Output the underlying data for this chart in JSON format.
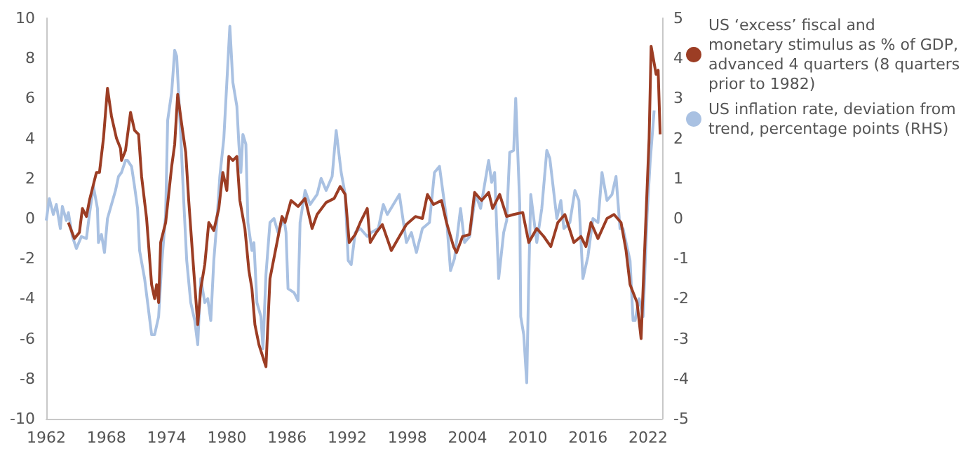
{
  "chart_data": {
    "type": "line",
    "legend": "top right",
    "marker": "none",
    "xlim": [
      1962,
      2023.4
    ],
    "xticks": [
      1962,
      1968,
      1974,
      1980,
      1986,
      1992,
      1998,
      2004,
      2010,
      2016,
      2022
    ],
    "ylim": [
      -10,
      10
    ],
    "yticks": [
      -10,
      -8,
      -6,
      -4,
      -2,
      0,
      2,
      4,
      6,
      8,
      10
    ],
    "y2lim": [
      -5,
      5
    ],
    "y2ticks": [
      -5,
      -4,
      -3,
      -2,
      -1,
      0,
      1,
      2,
      3,
      4,
      5
    ],
    "series": [
      {
        "name": "US ‘excess’ fiscal and monetary stimulus as % of GDP, advanced 4 quarters (8 quarters prior to 1982)",
        "color": "#9c3d24",
        "x": [
          1964.2,
          1964.8,
          1965.3,
          1965.6,
          1966,
          1966.3,
          1966.7,
          1967,
          1967.3,
          1967.7,
          1968.1,
          1968.5,
          1969,
          1969.4,
          1969.5,
          1969.9,
          1970.4,
          1970.8,
          1971.2,
          1971.5,
          1972,
          1972.5,
          1972.8,
          1973,
          1973.2,
          1973.4,
          1973.9,
          1974.5,
          1974.8,
          1975.1,
          1975.5,
          1975.9,
          1976.2,
          1976.7,
          1977.1,
          1977.4,
          1977.8,
          1978.2,
          1978.7,
          1979.2,
          1979.6,
          1980,
          1980.2,
          1980.6,
          1981,
          1981.3,
          1981.8,
          1982.2,
          1982.5,
          1982.8,
          1983.2,
          1983.9,
          1984.3,
          1985,
          1985.5,
          1985.8,
          1986.4,
          1987.1,
          1987.8,
          1988.5,
          1989,
          1989.9,
          1990.7,
          1991.3,
          1991.8,
          1992.2,
          1992.8,
          1993.3,
          1994,
          1994.3,
          1994.9,
          1995.5,
          1996.4,
          1997.2,
          1997.9,
          1998.8,
          1999.5,
          2000,
          2000.6,
          2001.4,
          2001.9,
          2002.6,
          2002.9,
          2003.5,
          2004.2,
          2004.7,
          2005.4,
          2006.1,
          2006.5,
          2007.2,
          2007.9,
          2008.6,
          2009.5,
          2010.1,
          2010.9,
          2011.6,
          2012.3,
          2013,
          2013.7,
          2014.6,
          2015.3,
          2015.8,
          2016.3,
          2017,
          2017.9,
          2018.6,
          2019.3,
          2019.8,
          2020.2,
          2020.9,
          2021.3,
          2022.1,
          2022.3,
          2022.8,
          2023,
          2023.2
        ],
        "values": [
          -0.2,
          -1.0,
          -0.7,
          0.5,
          0.1,
          0.9,
          1.7,
          2.3,
          2.3,
          4.0,
          6.5,
          5.1,
          4.0,
          3.5,
          2.9,
          3.4,
          5.3,
          4.4,
          4.2,
          2.1,
          0,
          -3.3,
          -4.0,
          -3.3,
          -4.2,
          -1.2,
          -0.2,
          2.6,
          3.7,
          6.2,
          4.7,
          3.3,
          0.9,
          -2.6,
          -5.3,
          -3.5,
          -2.3,
          -0.2,
          -0.6,
          0.5,
          2.3,
          1.4,
          3.1,
          2.9,
          3.1,
          0.9,
          -0.5,
          -2.6,
          -3.5,
          -5.3,
          -6.3,
          -7.4,
          -3.0,
          -1.2,
          0.1,
          -0.2,
          0.9,
          0.6,
          1.0,
          -0.5,
          0.2,
          0.8,
          1.0,
          1.6,
          1.2,
          -1.2,
          -0.8,
          -0.2,
          0.5,
          -1.2,
          -0.7,
          -0.3,
          -1.6,
          -0.9,
          -0.3,
          0.1,
          0,
          1.2,
          0.7,
          0.9,
          -0.2,
          -1.4,
          -1.7,
          -0.9,
          -0.8,
          1.3,
          0.9,
          1.3,
          0.5,
          1.2,
          0.1,
          0.2,
          0.3,
          -1.2,
          -0.5,
          -0.9,
          -1.4,
          -0.2,
          0.2,
          -1.2,
          -0.9,
          -1.4,
          -0.2,
          -1.0,
          0,
          0.2,
          -0.2,
          -1.6,
          -3.3,
          -4.2,
          -6.0,
          4.0,
          8.6,
          7.2,
          7.4,
          4.2
        ]
      },
      {
        "name": "US inflation rate, deviation from trend, percentage points (RHS)",
        "color": "#a9c1e2",
        "axis": "y2",
        "x": [
          1962,
          1962.3,
          1962.7,
          1963,
          1963.4,
          1963.6,
          1964,
          1964.2,
          1964.6,
          1965,
          1965.5,
          1966,
          1966.3,
          1966.7,
          1967.1,
          1967.2,
          1967.5,
          1967.8,
          1968.1,
          1968.5,
          1968.9,
          1969.2,
          1969.5,
          1969.9,
          1970.1,
          1970.5,
          1970.8,
          1971.1,
          1971.3,
          1971.8,
          1972.1,
          1972.5,
          1972.8,
          1973.2,
          1973.5,
          1973.9,
          1974.1,
          1974.5,
          1974.8,
          1975,
          1975.4,
          1975.7,
          1976,
          1976.4,
          1976.8,
          1977.1,
          1977.4,
          1977.8,
          1978.1,
          1978.4,
          1978.7,
          1979,
          1979.3,
          1979.7,
          1980,
          1980.3,
          1980.6,
          1981,
          1981.2,
          1981.4,
          1981.6,
          1981.9,
          1982.1,
          1982.5,
          1982.7,
          1983,
          1983.4,
          1983.6,
          1983.9,
          1984.3,
          1984.7,
          1985.1,
          1985.7,
          1985.9,
          1986.1,
          1986.7,
          1987.1,
          1987.3,
          1987.8,
          1988.3,
          1989,
          1989.4,
          1989.9,
          1990.5,
          1990.9,
          1991.4,
          1991.8,
          1992.1,
          1992.4,
          1992.8,
          1993.3,
          1994,
          1994.4,
          1995.1,
          1995.6,
          1996,
          1997.2,
          1997.9,
          1998.4,
          1998.9,
          1999.5,
          2000.2,
          2000.7,
          2001.2,
          2001.9,
          2002.3,
          2002.7,
          2003.3,
          2003.7,
          2004.2,
          2004.8,
          2005.3,
          2006.1,
          2006.4,
          2006.7,
          2007.1,
          2007.6,
          2007.9,
          2008.2,
          2008.6,
          2008.8,
          2009.2,
          2009.3,
          2009.6,
          2009.9,
          2010.1,
          2010.3,
          2010.9,
          2011.4,
          2011.9,
          2012.2,
          2012.9,
          2013.3,
          2013.6,
          2014.2,
          2014.7,
          2015.1,
          2015.5,
          2016,
          2016.5,
          2017,
          2017.4,
          2017.9,
          2018.4,
          2018.8,
          2019.2,
          2019.5,
          2019.8,
          2020.2,
          2020.5,
          2020.7,
          2021.1,
          2021.5,
          2021.9,
          2022.2,
          2022.6
        ],
        "values": [
          -0.05,
          0.5,
          0.1,
          0.35,
          -0.25,
          0.3,
          -0.05,
          0.15,
          -0.45,
          -0.75,
          -0.45,
          -0.5,
          0.1,
          0.8,
          0.25,
          -0.6,
          -0.4,
          -0.85,
          0,
          0.35,
          0.7,
          1.05,
          1.15,
          1.45,
          1.45,
          1.3,
          0.8,
          0.25,
          -0.8,
          -1.5,
          -2.1,
          -2.9,
          -2.9,
          -2.45,
          -1.15,
          0.1,
          2.45,
          3.15,
          4.2,
          4.05,
          2.1,
          0.45,
          -1.05,
          -2.1,
          -2.55,
          -3.15,
          -1.5,
          -2.1,
          -2.0,
          -2.55,
          -1.05,
          -0.1,
          1.05,
          2.0,
          3.4,
          4.8,
          3.4,
          2.8,
          1.85,
          1.15,
          2.1,
          1.85,
          -0.1,
          -0.8,
          -0.6,
          -2.1,
          -2.45,
          -3.25,
          -1.4,
          -0.1,
          0,
          -0.35,
          0,
          -0.35,
          -1.75,
          -1.85,
          -2.05,
          -0.1,
          0.7,
          0.35,
          0.6,
          1.0,
          0.7,
          1.05,
          2.2,
          1.15,
          0.6,
          -1.05,
          -1.15,
          -0.35,
          -0.25,
          -0.45,
          -0.35,
          -0.25,
          0.35,
          0.1,
          0.6,
          -0.6,
          -0.35,
          -0.85,
          -0.25,
          -0.1,
          1.15,
          1.3,
          0,
          -1.3,
          -1.0,
          0.25,
          -0.6,
          -0.45,
          0.6,
          0.25,
          1.45,
          0.9,
          1.15,
          -1.5,
          -0.35,
          -0.05,
          1.65,
          1.7,
          3.0,
          0.35,
          -2.45,
          -2.9,
          -4.1,
          -1.5,
          0.6,
          -0.6,
          0.25,
          1.7,
          1.5,
          0,
          0.45,
          -0.25,
          -0.1,
          0.7,
          0.45,
          -1.5,
          -0.95,
          0,
          -0.1,
          1.15,
          0.45,
          0.6,
          1.05,
          -0.25,
          -0.25,
          -0.6,
          -1.05,
          -2.55,
          -2.55,
          -2.0,
          -2.45,
          0.1,
          1.4,
          2.7
        ]
      }
    ]
  }
}
